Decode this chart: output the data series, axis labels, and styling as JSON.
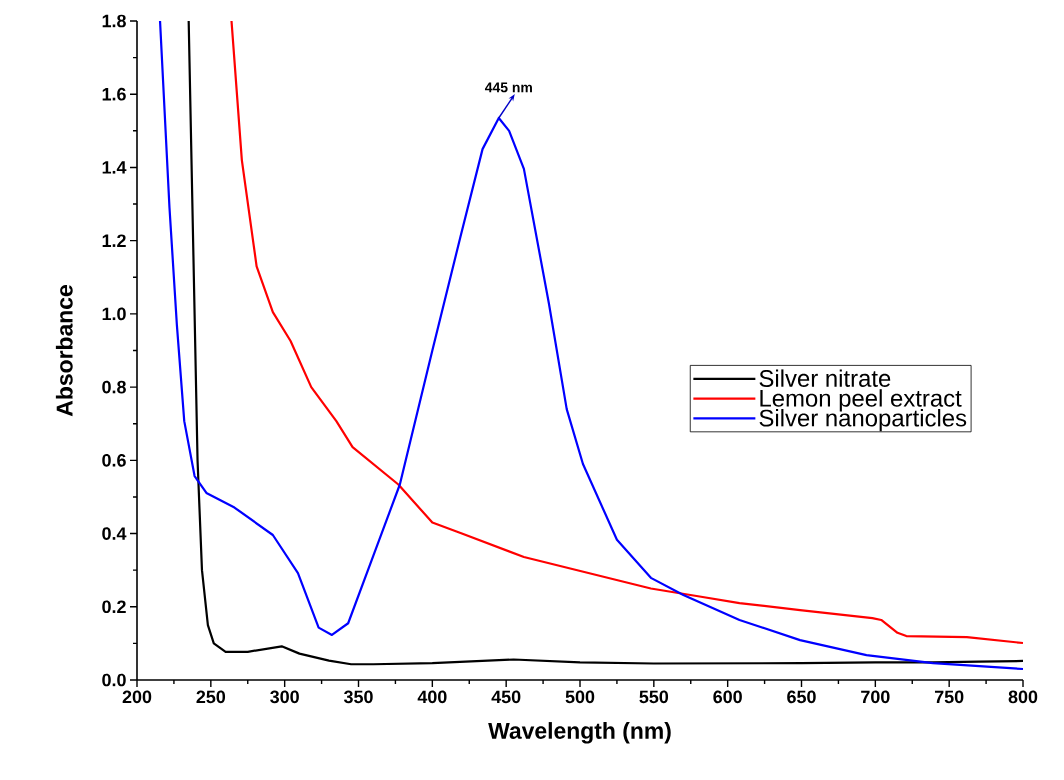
{
  "chart_data": {
    "type": "line",
    "xlabel": "Wavelength (nm)",
    "ylabel": "Absorbance",
    "xlim": [
      200,
      800
    ],
    "ylim": [
      0,
      1.8
    ],
    "xticks": [
      200,
      250,
      300,
      350,
      400,
      450,
      500,
      550,
      600,
      650,
      700,
      750,
      800
    ],
    "yticks": [
      {
        "value": 0,
        "label": "0.0"
      },
      0.2,
      0.4,
      0.6,
      0.8,
      {
        "value": 1,
        "label": "1.0"
      },
      1.2,
      1.4,
      1.6,
      1.8
    ],
    "legend": "right",
    "annotations": [
      {
        "text": "445 nm",
        "x": 445,
        "y": 1.535
      }
    ],
    "series": [
      {
        "name": "Silver nitrate",
        "color": "#000000",
        "x": [
          235,
          238,
          241,
          244,
          248,
          252,
          260,
          275,
          298,
          310,
          330,
          345,
          360,
          400,
          455,
          500,
          550,
          650,
          700,
          739,
          770,
          800
        ],
        "values": [
          1.8,
          1.2,
          0.6,
          0.3,
          0.15,
          0.1,
          0.077,
          0.077,
          0.092,
          0.072,
          0.053,
          0.043,
          0.043,
          0.046,
          0.056,
          0.048,
          0.045,
          0.046,
          0.048,
          0.048,
          0.05,
          0.052
        ]
      },
      {
        "name": "Lemon peel extract",
        "color": "#ff0000",
        "x": [
          264,
          271,
          281,
          292,
          304,
          318,
          335,
          346,
          377,
          400,
          420,
          462,
          548,
          581,
          608,
          649,
          698,
          704,
          715,
          721,
          762,
          800
        ],
        "values": [
          1.8,
          1.42,
          1.13,
          1.005,
          0.926,
          0.8,
          0.707,
          0.636,
          0.534,
          0.43,
          0.4,
          0.336,
          0.25,
          0.228,
          0.21,
          0.191,
          0.169,
          0.164,
          0.129,
          0.12,
          0.117,
          0.101
        ]
      },
      {
        "name": "Silver nanoparticles",
        "color": "#0000ff",
        "x": [
          215.6,
          222,
          227,
          232,
          239,
          247,
          266,
          292,
          309,
          323,
          332,
          343,
          360,
          378,
          400,
          419,
          434,
          445,
          452,
          462,
          479,
          491,
          502,
          525,
          548,
          570,
          608,
          649,
          694,
          739,
          800
        ],
        "values": [
          1.8,
          1.29,
          0.97,
          0.707,
          0.557,
          0.511,
          0.471,
          0.396,
          0.292,
          0.143,
          0.123,
          0.155,
          0.339,
          0.534,
          0.9,
          1.21,
          1.45,
          1.535,
          1.5,
          1.396,
          1.027,
          0.74,
          0.59,
          0.383,
          0.279,
          0.232,
          0.164,
          0.109,
          0.068,
          0.046,
          0.03
        ]
      }
    ]
  }
}
